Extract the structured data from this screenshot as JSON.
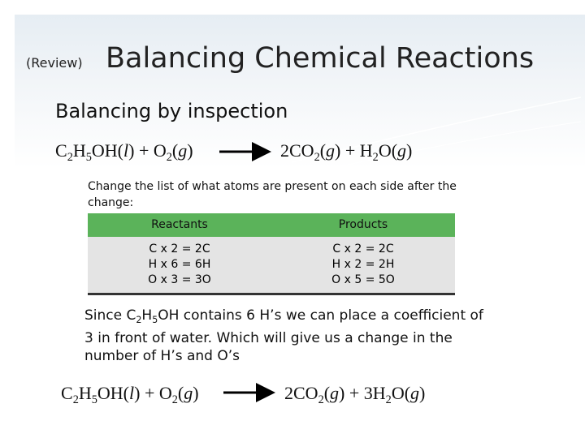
{
  "header": {
    "prefix": "(Review)",
    "title": "Balancing Chemical Reactions"
  },
  "subtitle": "Balancing by inspection",
  "equation_1": {
    "left": [
      {
        "t": "C"
      },
      {
        "sub": "2"
      },
      {
        "t": "H"
      },
      {
        "sub": "5"
      },
      {
        "t": "OH("
      },
      {
        "i": "l"
      },
      {
        "t": ") + O"
      },
      {
        "sub": "2"
      },
      {
        "t": "("
      },
      {
        "i": "g"
      },
      {
        "t": ")"
      }
    ],
    "right": [
      {
        "t": "2CO"
      },
      {
        "sub": "2"
      },
      {
        "t": "("
      },
      {
        "i": "g"
      },
      {
        "t": ") + H"
      },
      {
        "sub": "2"
      },
      {
        "t": "O("
      },
      {
        "i": "g"
      },
      {
        "t": ")"
      }
    ]
  },
  "instruction": "Change the list of what atoms are present on each side after the change:",
  "table": {
    "header": [
      "Reactants",
      "Products"
    ],
    "rows": [
      [
        "C x 2  = 2C",
        "C x 2 = 2C"
      ],
      [
        "H x 6  = 6H",
        "H x 2 = 2H"
      ],
      [
        "O x 3  = 3O",
        "O x 5 = 5O"
      ]
    ]
  },
  "paragraph": [
    [
      {
        "t": "Since C"
      },
      {
        "sub": "2"
      },
      {
        "t": "H"
      },
      {
        "sub": "5"
      },
      {
        "t": "OH contains 6 H’s we can place a coefficient of"
      }
    ],
    [
      {
        "t": "3 in front of water. Which will give us a change in the"
      }
    ],
    [
      {
        "t": "number of H’s and O’s"
      }
    ]
  ],
  "equation_2": {
    "left": [
      {
        "t": "C"
      },
      {
        "sub": "2"
      },
      {
        "t": "H"
      },
      {
        "sub": "5"
      },
      {
        "t": "OH("
      },
      {
        "i": "l"
      },
      {
        "t": ") + O"
      },
      {
        "sub": "2"
      },
      {
        "t": "("
      },
      {
        "i": "g"
      },
      {
        "t": ")"
      }
    ],
    "right": [
      {
        "t": "2CO"
      },
      {
        "sub": "2"
      },
      {
        "t": "("
      },
      {
        "i": "g"
      },
      {
        "t": ") + 3H"
      },
      {
        "sub": "2"
      },
      {
        "t": "O("
      },
      {
        "i": "g"
      },
      {
        "t": ")"
      }
    ]
  }
}
